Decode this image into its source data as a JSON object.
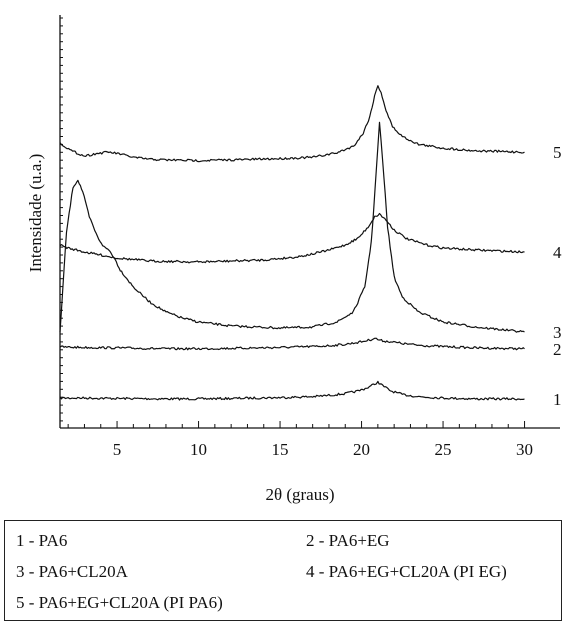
{
  "chart_data": {
    "type": "line",
    "xlabel": "2θ (graus)",
    "ylabel": "Intensidade (u.a.)",
    "xlim": [
      1.5,
      31
    ],
    "x_ticks": [
      5,
      10,
      15,
      20,
      25,
      30
    ],
    "x_tick_labels": [
      "5",
      "10",
      "15",
      "20",
      "25",
      "30"
    ],
    "y_axis_numeric_labels": false,
    "grid": false,
    "legend_placement": "bottom",
    "series": [
      {
        "name": "1 - PA6",
        "label": "1",
        "x": [
          1.5,
          3,
          5,
          8,
          10,
          12,
          15,
          17,
          18,
          19,
          19.8,
          20.4,
          20.8,
          21.0,
          21.3,
          21.8,
          22.5,
          23.5,
          25,
          27,
          30
        ],
        "y": [
          0.0,
          0.0,
          -0.005,
          -0.01,
          -0.01,
          -0.005,
          0.005,
          0.015,
          0.03,
          0.05,
          0.08,
          0.12,
          0.16,
          0.18,
          0.14,
          0.08,
          0.04,
          0.015,
          0.0,
          -0.01,
          -0.01
        ]
      },
      {
        "name": "2 - PA6+EG",
        "label": "2",
        "x": [
          1.5,
          3,
          5,
          8,
          10,
          12,
          15,
          17,
          18,
          19,
          20,
          20.5,
          20.8,
          21.0,
          21.3,
          21.8,
          22.5,
          23.5,
          25,
          27,
          30
        ],
        "y": [
          0.0,
          -0.005,
          -0.01,
          -0.02,
          -0.02,
          -0.015,
          -0.005,
          0.005,
          0.015,
          0.03,
          0.06,
          0.08,
          0.1,
          0.085,
          0.07,
          0.06,
          0.04,
          0.02,
          0.005,
          -0.01,
          -0.02
        ]
      },
      {
        "name": "3 - PA6+CL20A",
        "label": "3",
        "x": [
          1.5,
          1.9,
          2.3,
          2.6,
          2.9,
          3.3,
          3.8,
          4.2,
          4.5,
          4.8,
          5.2,
          6,
          7,
          8,
          9,
          10,
          12,
          15,
          17,
          18.5,
          19.5,
          20.2,
          20.6,
          20.9,
          21.1,
          21.3,
          21.6,
          22,
          22.5,
          23.5,
          25,
          27,
          30
        ],
        "y": [
          0.0,
          1.0,
          1.45,
          1.52,
          1.4,
          1.15,
          0.95,
          0.85,
          0.82,
          0.75,
          0.62,
          0.45,
          0.3,
          0.2,
          0.14,
          0.1,
          0.06,
          0.04,
          0.05,
          0.1,
          0.2,
          0.45,
          0.9,
          1.6,
          2.1,
          1.7,
          1.05,
          0.55,
          0.35,
          0.2,
          0.1,
          0.05,
          0.0
        ]
      },
      {
        "name": "4 - PA6+EG+CL20A (PI EG)",
        "label": "4",
        "x": [
          1.5,
          2,
          3,
          4,
          5,
          7,
          10,
          12,
          14,
          16,
          17,
          18,
          19,
          19.8,
          20.4,
          20.8,
          21.1,
          21.5,
          22,
          22.8,
          24,
          25,
          27,
          30
        ],
        "y": [
          0.0,
          -0.03,
          -0.07,
          -0.1,
          -0.13,
          -0.16,
          -0.17,
          -0.16,
          -0.15,
          -0.12,
          -0.09,
          -0.05,
          0.0,
          0.07,
          0.18,
          0.28,
          0.31,
          0.25,
          0.15,
          0.06,
          0.0,
          -0.03,
          -0.05,
          -0.07
        ]
      },
      {
        "name": "5 - PA6+EG+CL20A (PI PA6)",
        "label": "5",
        "x": [
          1.5,
          2.2,
          3,
          3.8,
          4.5,
          5.2,
          6,
          7,
          8,
          10,
          12,
          15,
          17,
          18.5,
          19.5,
          20.1,
          20.5,
          20.8,
          21.0,
          21.2,
          21.5,
          21.9,
          22.5,
          23.5,
          25,
          27,
          30
        ],
        "y": [
          0.0,
          -0.12,
          -0.2,
          -0.16,
          -0.14,
          -0.17,
          -0.22,
          -0.25,
          -0.26,
          -0.27,
          -0.26,
          -0.24,
          -0.22,
          -0.15,
          -0.05,
          0.15,
          0.4,
          0.72,
          0.88,
          0.78,
          0.5,
          0.25,
          0.1,
          -0.02,
          -0.08,
          -0.12,
          -0.14
        ]
      }
    ]
  },
  "legend": {
    "entries": [
      {
        "id": "1",
        "text": "1 - PA6"
      },
      {
        "id": "2",
        "text": "2 - PA6+EG"
      },
      {
        "id": "3",
        "text": "3 - PA6+CL20A"
      },
      {
        "id": "4",
        "text": "4 - PA6+EG+CL20A (PI EG)"
      },
      {
        "id": "5",
        "text": "5 - PA6+EG+CL20A (PI PA6)"
      }
    ]
  }
}
